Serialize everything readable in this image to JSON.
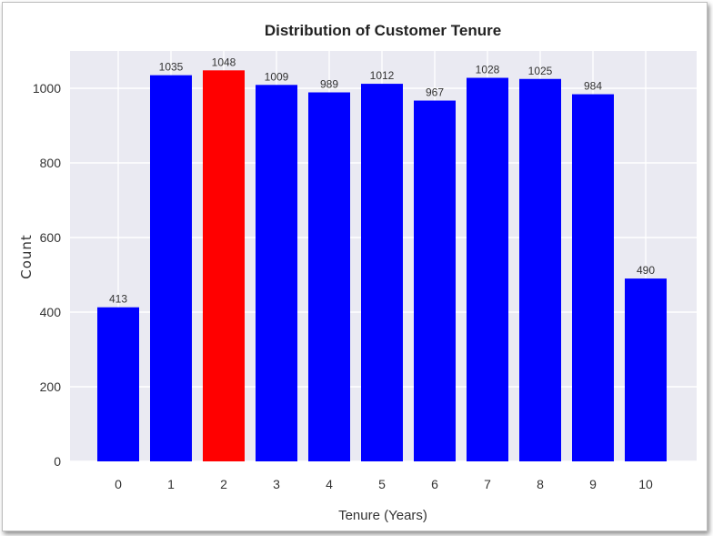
{
  "chart_data": {
    "type": "bar",
    "title": "Distribution of Customer Tenure",
    "xlabel": "Tenure (Years)",
    "ylabel": "Count",
    "categories": [
      "0",
      "1",
      "2",
      "3",
      "4",
      "5",
      "6",
      "7",
      "8",
      "9",
      "10"
    ],
    "values": [
      413,
      1035,
      1048,
      1009,
      989,
      1012,
      967,
      1028,
      1025,
      984,
      490
    ],
    "data_labels": [
      "413",
      "1035",
      "1048",
      "1009",
      "989",
      "1012",
      "967",
      "1028",
      "1025",
      "984",
      "490"
    ],
    "yticks": [
      0,
      200,
      400,
      600,
      800,
      1000
    ],
    "ytick_labels": [
      "0",
      "200",
      "400",
      "600",
      "800",
      "1000"
    ],
    "ylim": [
      0,
      1100
    ],
    "grid": true,
    "bar_color": "#0000ff",
    "highlight_color": "#ff0000",
    "highlight_index": 2,
    "background_color": "#eaeaf2"
  }
}
